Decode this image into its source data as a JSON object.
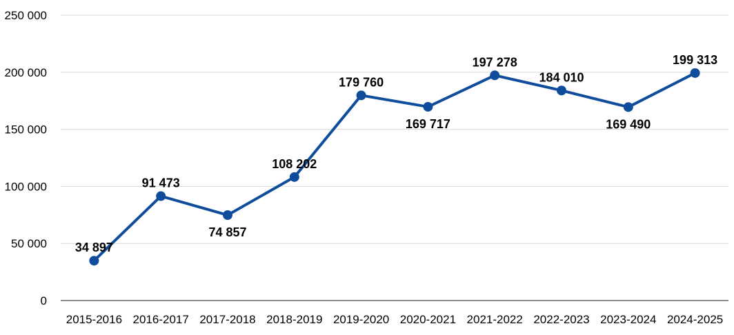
{
  "chart_data": {
    "type": "line",
    "title": "",
    "xlabel": "",
    "ylabel": "",
    "categories": [
      "2015-2016",
      "2016-2017",
      "2017-2018",
      "2018-2019",
      "2019-2020",
      "2020-2021",
      "2021-2022",
      "2022-2023",
      "2023-2024",
      "2024-2025"
    ],
    "series": [
      {
        "values": [
          34897,
          91473,
          74857,
          108202,
          179760,
          169717,
          197278,
          184010,
          169490,
          199313
        ],
        "data_labels": [
          "34 897",
          "91 473",
          "74 857",
          "108 202",
          "179 760",
          "169 717",
          "197 278",
          "184 010",
          "169 490",
          "199 313"
        ]
      }
    ],
    "ylim": [
      0,
      250000
    ],
    "yticks": [
      0,
      50000,
      100000,
      150000,
      200000,
      250000
    ],
    "ytick_labels": [
      "0",
      "50 000",
      "100 000",
      "150 000",
      "200 000",
      "250 000"
    ],
    "grid": true,
    "legend": "none",
    "colors": {
      "line": "#0f4c9c",
      "marker": "#0f4c9c",
      "grid": "#d9d9d9",
      "axis": "#8c8c8c"
    }
  }
}
